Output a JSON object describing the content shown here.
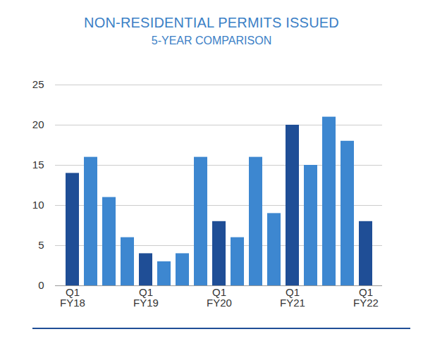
{
  "chart_data": {
    "type": "bar",
    "title": "NON-RESIDENTIAL PERMITS ISSUED",
    "subtitle": "5-YEAR COMPARISON",
    "categories": [
      "Q1\nFY18",
      null,
      null,
      null,
      "Q1\nFY19",
      null,
      null,
      null,
      "Q1\nFY20",
      null,
      null,
      null,
      "Q1\nFY21",
      null,
      null,
      null,
      "Q1\nFY22"
    ],
    "values": [
      14,
      16,
      11,
      6,
      4,
      3,
      4,
      16,
      8,
      6,
      16,
      9,
      20,
      15,
      21,
      18,
      8
    ],
    "colors": [
      "#1f4e96",
      "#3d87d0",
      "#3d87d0",
      "#3d87d0",
      "#1f4e96",
      "#3d87d0",
      "#3d87d0",
      "#3d87d0",
      "#1f4e96",
      "#3d87d0",
      "#3d87d0",
      "#3d87d0",
      "#1f4e96",
      "#3d87d0",
      "#3d87d0",
      "#3d87d0",
      "#1f4e96"
    ],
    "ylim": [
      0,
      25
    ],
    "yticks": [
      0,
      5,
      10,
      15,
      20,
      25
    ],
    "grid": true
  }
}
